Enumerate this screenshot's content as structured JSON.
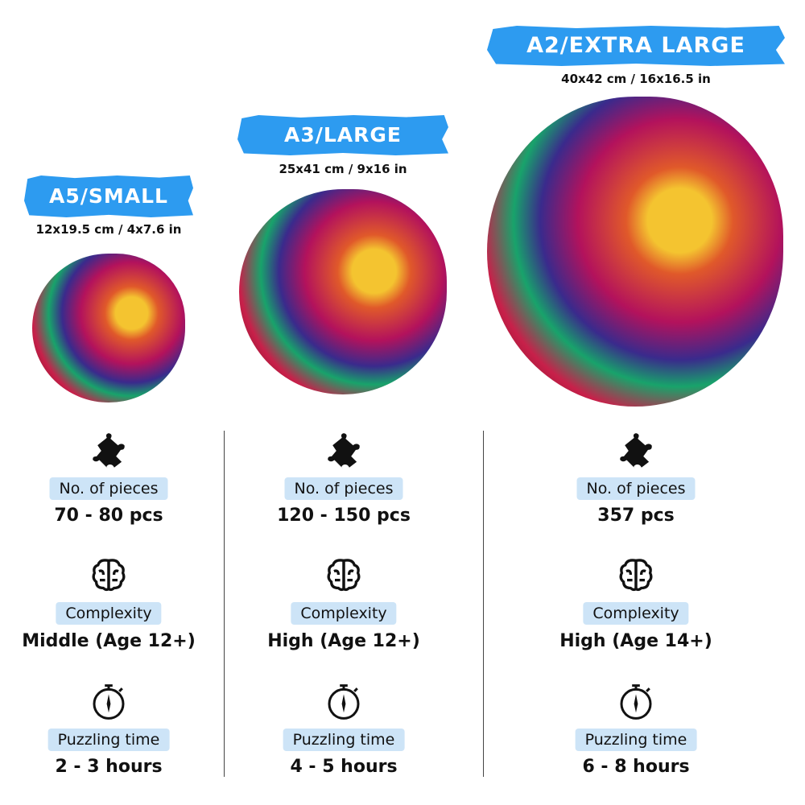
{
  "sizes": [
    {
      "name": "A5/SMALL",
      "dims": "12x19.5 cm / 4x7.6 in",
      "pieces": "70 - 80 pcs",
      "complexity": "Middle (Age 12+)",
      "time": "2 - 3 hours"
    },
    {
      "name": "A3/LARGE",
      "dims": "25x41 cm / 9x16 in",
      "pieces": "120 - 150 pcs",
      "complexity": "High (Age 12+)",
      "time": "4 - 5 hours"
    },
    {
      "name": "A2/EXTRA LARGE",
      "dims": "40x42 cm / 16x16.5 in",
      "pieces": "357 pcs",
      "complexity": "High (Age 14+)",
      "time": "6 - 8 hours"
    }
  ],
  "labels": {
    "pieces": "No. of pieces",
    "complexity": "Complexity",
    "time": "Puzzling time"
  },
  "colors": {
    "banner": "#2d9bf0",
    "pill": "#cde4f7"
  },
  "icons": [
    "puzzle-piece-icon",
    "brain-icon",
    "stopwatch-icon"
  ]
}
